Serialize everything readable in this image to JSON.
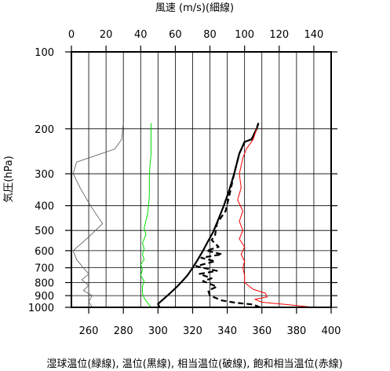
{
  "chart_data": {
    "type": "line",
    "title": "風速 (m/s)(細線)",
    "xlabel": "湿球温位(緑線), 温位(黒線), 相当温位(破線), 飽和相当温位(赤線)",
    "ylabel": "気圧(hPa)",
    "top_axis": {
      "label": "風速 (m/s)(細線)",
      "range": [
        0,
        150
      ],
      "ticks": [
        0,
        20,
        40,
        60,
        80,
        100,
        120,
        140
      ]
    },
    "bottom_axis": {
      "range": [
        250,
        400
      ],
      "ticks": [
        260,
        280,
        300,
        320,
        340,
        360,
        380,
        400
      ]
    },
    "y_axis": {
      "scale": "log",
      "range": [
        1000,
        100
      ],
      "ticks": [
        100,
        200,
        300,
        400,
        500,
        600,
        700,
        800,
        900,
        1000
      ]
    },
    "grid": true,
    "series": [
      {
        "name": "湿球温位",
        "color": "#00dd00",
        "axis": "bottom",
        "style": "solid",
        "points": [
          [
            296,
            1000
          ],
          [
            294,
            960
          ],
          [
            292,
            920
          ],
          [
            291,
            880
          ],
          [
            291,
            830
          ],
          [
            292,
            790
          ],
          [
            290,
            750
          ],
          [
            291,
            710
          ],
          [
            290,
            680
          ],
          [
            292,
            650
          ],
          [
            291,
            620
          ],
          [
            292,
            590
          ],
          [
            291,
            560
          ],
          [
            293,
            520
          ],
          [
            292,
            490
          ],
          [
            294,
            430
          ],
          [
            295,
            370
          ],
          [
            295,
            300
          ],
          [
            296,
            250
          ],
          [
            296,
            190
          ]
        ]
      },
      {
        "name": "温位",
        "color": "#000000",
        "axis": "bottom",
        "style": "solid",
        "points": [
          [
            301,
            1000
          ],
          [
            300,
            970
          ],
          [
            303,
            930
          ],
          [
            307,
            880
          ],
          [
            311,
            830
          ],
          [
            314,
            790
          ],
          [
            317,
            750
          ],
          [
            320,
            700
          ],
          [
            323,
            650
          ],
          [
            326,
            600
          ],
          [
            329,
            550
          ],
          [
            332,
            505
          ],
          [
            335,
            450
          ],
          [
            338,
            400
          ],
          [
            341,
            350
          ],
          [
            344,
            300
          ],
          [
            347,
            250
          ],
          [
            350,
            225
          ],
          [
            354,
            220
          ],
          [
            357,
            200
          ],
          [
            358,
            190
          ]
        ]
      },
      {
        "name": "相当温位",
        "color": "#000000",
        "axis": "bottom",
        "style": "dashed",
        "points": [
          [
            359,
            1000
          ],
          [
            355,
            975
          ],
          [
            345,
            960
          ],
          [
            337,
            940
          ],
          [
            330,
            900
          ],
          [
            329,
            860
          ],
          [
            334,
            830
          ],
          [
            326,
            790
          ],
          [
            331,
            770
          ],
          [
            324,
            740
          ],
          [
            334,
            720
          ],
          [
            322,
            690
          ],
          [
            333,
            660
          ],
          [
            325,
            640
          ],
          [
            337,
            620
          ],
          [
            328,
            600
          ],
          [
            335,
            580
          ],
          [
            331,
            545
          ],
          [
            333,
            520
          ],
          [
            334,
            470
          ],
          [
            339,
            420
          ],
          [
            341,
            370
          ],
          [
            344,
            300
          ],
          [
            347,
            250
          ],
          [
            350,
            225
          ],
          [
            354,
            220
          ],
          [
            357,
            200
          ],
          [
            358,
            190
          ]
        ]
      },
      {
        "name": "飽和相当温位",
        "color": "#ff0000",
        "axis": "bottom",
        "style": "solid",
        "points": [
          [
            390,
            1000
          ],
          [
            374,
            975
          ],
          [
            360,
            955
          ],
          [
            356,
            930
          ],
          [
            363,
            910
          ],
          [
            362,
            880
          ],
          [
            355,
            850
          ],
          [
            350,
            800
          ],
          [
            350,
            750
          ],
          [
            349,
            700
          ],
          [
            350,
            660
          ],
          [
            348,
            620
          ],
          [
            350,
            580
          ],
          [
            347,
            540
          ],
          [
            349,
            500
          ],
          [
            347,
            460
          ],
          [
            349,
            420
          ],
          [
            346,
            380
          ],
          [
            348,
            340
          ],
          [
            347,
            300
          ],
          [
            349,
            260
          ],
          [
            351,
            240
          ],
          [
            355,
            220
          ],
          [
            357,
            200
          ]
        ]
      },
      {
        "name": "風速",
        "color": "#555555",
        "axis": "top",
        "style": "solid",
        "points": [
          [
            12,
            1000
          ],
          [
            10,
            950
          ],
          [
            12,
            900
          ],
          [
            7,
            860
          ],
          [
            10,
            820
          ],
          [
            6,
            780
          ],
          [
            10,
            740
          ],
          [
            7,
            700
          ],
          [
            3,
            650
          ],
          [
            1,
            600
          ],
          [
            10,
            530
          ],
          [
            18,
            470
          ],
          [
            11,
            400
          ],
          [
            5,
            340
          ],
          [
            1,
            300
          ],
          [
            3,
            270
          ],
          [
            25,
            240
          ],
          [
            29,
            220
          ],
          [
            30,
            190
          ]
        ]
      }
    ]
  }
}
